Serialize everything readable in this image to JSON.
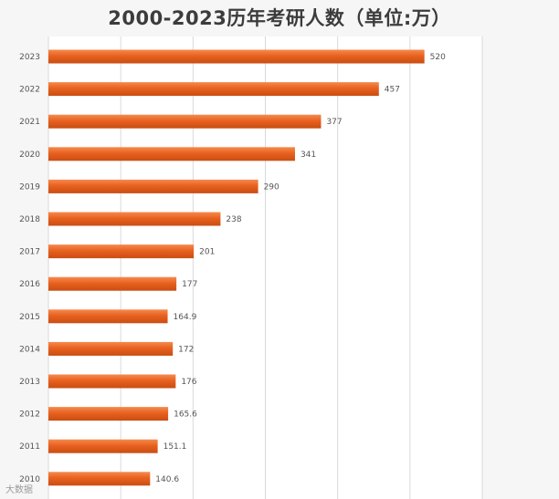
{
  "chart_data": {
    "type": "bar",
    "orientation": "horizontal",
    "title": "2000-2023历年考研人数（单位:万）",
    "categories": [
      "2023",
      "2022",
      "2021",
      "2020",
      "2019",
      "2018",
      "2017",
      "2016",
      "2015",
      "2014",
      "2013",
      "2012",
      "2011",
      "2010"
    ],
    "values": [
      520,
      457,
      377,
      341,
      290,
      238,
      201,
      177,
      164.9,
      172,
      176,
      165.6,
      151.1,
      140.6
    ],
    "value_labels": [
      "520",
      "457",
      "377",
      "341",
      "290",
      "238",
      "201",
      "177",
      "164.9",
      "172",
      "176",
      "165.6",
      "151.1",
      "140.6"
    ],
    "xlim": [
      0,
      600
    ],
    "grid": true,
    "bar_color": "#e8611f"
  },
  "watermark": "大数据"
}
